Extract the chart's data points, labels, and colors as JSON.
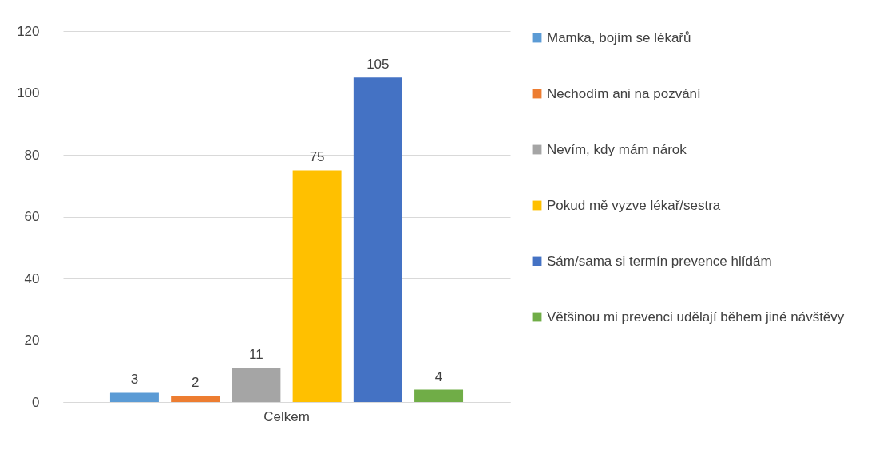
{
  "chart_data": {
    "type": "bar",
    "categories": [
      "Celkem"
    ],
    "series": [
      {
        "name": "Mamka, bojím se lékařů",
        "color": "#5b9bd5",
        "values": [
          3
        ]
      },
      {
        "name": "Nechodím ani na pozvání",
        "color": "#ed7d31",
        "values": [
          2
        ]
      },
      {
        "name": "Nevím, kdy mám nárok",
        "color": "#a5a5a5",
        "values": [
          11
        ]
      },
      {
        "name": "Pokud mě vyzve lékař/sestra",
        "color": "#ffc000",
        "values": [
          75
        ]
      },
      {
        "name": "Sám/sama si termín prevence hlídám",
        "color": "#4472c4",
        "values": [
          105
        ]
      },
      {
        "name": "Většinou mi prevenci udělají během jiné návštěvy",
        "color": "#70ad47",
        "values": [
          4
        ]
      }
    ],
    "ylim": [
      0,
      120
    ],
    "yticks": [
      0,
      20,
      40,
      60,
      80,
      100,
      120
    ],
    "grid": "y",
    "legend": "right",
    "data_labels": true
  }
}
